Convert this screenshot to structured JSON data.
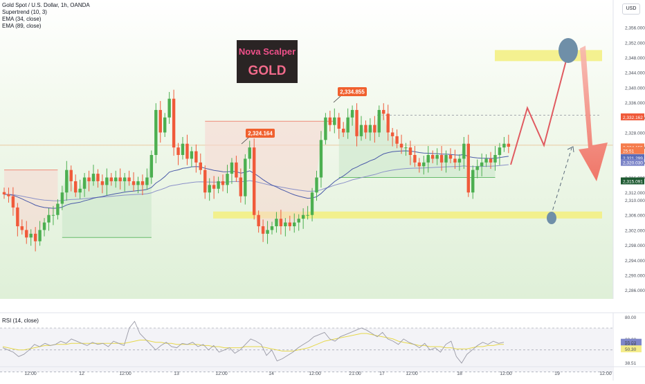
{
  "header": {
    "symbol": "Gold Spot / U.S. Dollar, 1h, OANDA",
    "indicators": [
      "Supertrend (10, 3)",
      "EMA (34, close)",
      "EMA (89, close)"
    ],
    "currency_button": "USD"
  },
  "logo": {
    "line1": "Nova Scalper",
    "line2": "GOLD"
  },
  "rsi": {
    "legend": "RSI (14, close)"
  },
  "chart_data": [
    {
      "type": "candlestick",
      "ylim": [
        2284,
        2360
      ],
      "y_ticks": [
        "2,356.000",
        "2,352.000",
        "2,348.000",
        "2,344.000",
        "2,340.000",
        "2,336.000",
        "2,332.000",
        "2,328.000",
        "2,324.000",
        "2,320.000",
        "2,316.000",
        "2,312.000",
        "2,310.000",
        "2,306.000",
        "2,302.000",
        "2,298.000",
        "2,294.000",
        "2,290.000",
        "2,286.000"
      ],
      "y_tick_values": [
        2356,
        2352,
        2348,
        2344,
        2340,
        2336,
        2332,
        2328,
        2324,
        2320,
        2316,
        2312,
        2310,
        2306,
        2302,
        2298,
        2294,
        2290,
        2286
      ],
      "x_ticks": [
        "12:00",
        "12",
        "12:00",
        "13",
        "12:00",
        "14",
        "12:00",
        "21:00",
        "17",
        "12:00",
        "18",
        "12:00",
        "19",
        "12:00"
      ],
      "closes": [
        2311.5,
        2311,
        2308,
        2303,
        2302,
        2300,
        2301,
        2299,
        2302,
        2304,
        2306,
        2306,
        2309,
        2312,
        2318,
        2315,
        2312,
        2313,
        2316,
        2315,
        2317,
        2315,
        2314,
        2316,
        2315,
        2316,
        2315,
        2316,
        2315,
        2314,
        2315,
        2314,
        2316,
        2322,
        2334,
        2328,
        2332,
        2337,
        2324,
        2322,
        2325,
        2321,
        2323,
        2320,
        2318,
        2312,
        2314,
        2313,
        2315,
        2314,
        2317,
        2320,
        2316,
        2311,
        2321,
        2324,
        2306,
        2303,
        2301,
        2302,
        2303,
        2305,
        2303,
        2304,
        2303,
        2304,
        2305,
        2306,
        2306,
        2312,
        2316,
        2326,
        2332,
        2330,
        2332,
        2329,
        2328,
        2332,
        2334,
        2327,
        2330,
        2328,
        2330,
        2328,
        2334,
        2333,
        2328,
        2327,
        2325,
        2324,
        2324,
        2322,
        2320,
        2319,
        2320,
        2322,
        2321,
        2322,
        2320,
        2322,
        2321,
        2320,
        2321,
        2325,
        2312,
        2318,
        2319,
        2320,
        2321,
        2320,
        2322,
        2324,
        2325,
        2324.2
      ],
      "price_labels": [
        {
          "text": "2,334.855",
          "value": 2334.855
        },
        {
          "text": "2,324.164",
          "value": 2324.164
        }
      ],
      "axis_tags": [
        {
          "text": "2,332.162",
          "value": 2332.162,
          "color": "#f05a3a"
        },
        {
          "text": "2,324.155",
          "value": 2324.155,
          "color": "#f57c4c"
        },
        {
          "text": "25:51",
          "value": 2323.2,
          "color": "#f57c4c"
        },
        {
          "text": "2,321.299",
          "value": 2321.299,
          "color": "#5b6cb8"
        },
        {
          "text": "2,320.030",
          "value": 2320.03,
          "color": "#7b84c8"
        },
        {
          "text": "2,315.091",
          "value": 2315.091,
          "color": "#1e5a32"
        }
      ],
      "zones": [
        {
          "value": 2348.5
        },
        {
          "value": 2306
        }
      ],
      "reference_levels": [
        2332.6,
        2324.6
      ],
      "colors": {
        "up": "#4caf50",
        "down": "#f05a3a",
        "ema34": "#4a5aa8",
        "ema89": "#8a90c8",
        "zone": "#f3ef7e",
        "arrow": "#f06a5a",
        "circle": "#6f8fa8"
      }
    },
    {
      "type": "line",
      "ylim": [
        36,
        82
      ],
      "y_ticks": [
        "80.00",
        "60.00",
        "55.03",
        "54.88",
        "50.30",
        "38.51"
      ],
      "y_tick_values": [
        80,
        60,
        57,
        54.88,
        51,
        38.51
      ],
      "levels": [
        70,
        50,
        30
      ],
      "series": [
        {
          "values": [
            52,
            50,
            48,
            44,
            46,
            50,
            55,
            53,
            56,
            54,
            55,
            58,
            56,
            60,
            58,
            56,
            54,
            57,
            55,
            56,
            53,
            58,
            56,
            54,
            70,
            76,
            65,
            60,
            55,
            50,
            54,
            57,
            53,
            52,
            56,
            55,
            57,
            53,
            55,
            50,
            54,
            48,
            50,
            52,
            47,
            50,
            55,
            60,
            58,
            55,
            45,
            50,
            40,
            42,
            45,
            48,
            52,
            55,
            58,
            62,
            64,
            66,
            60,
            58,
            62,
            64,
            66,
            68,
            70,
            68,
            65,
            62,
            66,
            60,
            58,
            55,
            60,
            57,
            55,
            52,
            56,
            50,
            52,
            48,
            55,
            58,
            44,
            38,
            46,
            50,
            54,
            57,
            55,
            58,
            56,
            57
          ]
        },
        {
          "values": [
            53,
            52,
            51,
            50,
            50,
            51,
            52,
            53,
            54,
            54,
            55,
            55,
            55,
            56,
            56,
            56,
            56,
            56,
            56,
            56,
            56,
            56,
            56,
            56,
            57,
            58,
            59,
            59,
            58,
            57,
            57,
            56,
            56,
            55,
            55,
            55,
            55,
            55,
            54,
            54,
            53,
            53,
            52,
            52,
            52,
            52,
            53,
            53,
            53,
            53,
            52,
            51,
            50,
            49,
            49,
            49,
            50,
            51,
            52,
            54,
            56,
            58,
            59,
            60,
            61,
            62,
            63,
            64,
            65,
            65,
            64,
            63,
            62,
            61,
            60,
            58,
            57,
            56,
            55,
            54,
            54,
            53,
            53,
            53,
            52,
            52,
            51,
            51,
            51,
            52,
            53,
            53,
            54,
            54,
            55,
            55
          ]
        }
      ]
    }
  ]
}
